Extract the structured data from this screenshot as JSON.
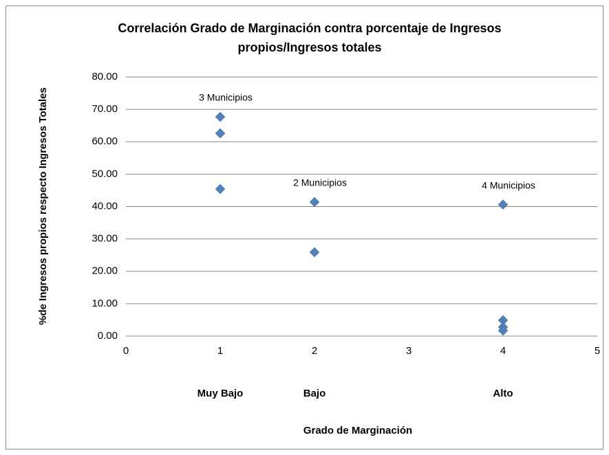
{
  "chart_data": {
    "type": "scatter",
    "title": [
      "Correlación Grado de Marginación contra porcentaje de Ingresos",
      "propios/Ingresos totales"
    ],
    "y_label": "%de Ingresos propios respecto Ingresos Totales",
    "x_label": "Grado de Marginación",
    "series": [
      {
        "color": "#4f81bd",
        "x": [
          1,
          1,
          1,
          2,
          2,
          4,
          4,
          4,
          4
        ],
        "values": [
          67.7,
          62.6,
          45.4,
          41.4,
          25.9,
          40.6,
          4.9,
          2.8,
          1.7
        ]
      }
    ],
    "xlim": [
      0,
      5
    ],
    "xticks": [
      0,
      1,
      2,
      3,
      4,
      5
    ],
    "ylim": [
      0,
      80
    ],
    "yticks": [
      {
        "value": 0,
        "label": "0.00"
      },
      {
        "value": 10,
        "label": "10.00"
      },
      {
        "value": 20,
        "label": "20.00"
      },
      {
        "value": 30,
        "label": "30.00"
      },
      {
        "value": 40,
        "label": "40.00"
      },
      {
        "value": 50,
        "label": "50.00"
      },
      {
        "value": 60,
        "label": "60.00"
      },
      {
        "value": 70,
        "label": "70.00"
      },
      {
        "value": 80,
        "label": "80.00"
      }
    ],
    "grid": true,
    "category_labels": [
      {
        "x": 1,
        "label": "Muy Bajo"
      },
      {
        "x": 2,
        "label": "Bajo"
      },
      {
        "x": 4,
        "label": "Alto"
      }
    ],
    "annotations": [
      {
        "x": 1,
        "text": "3 Municipios"
      },
      {
        "x": 2,
        "text": "2 Municipios"
      },
      {
        "x": 4,
        "text": "4 Municipios"
      }
    ]
  }
}
